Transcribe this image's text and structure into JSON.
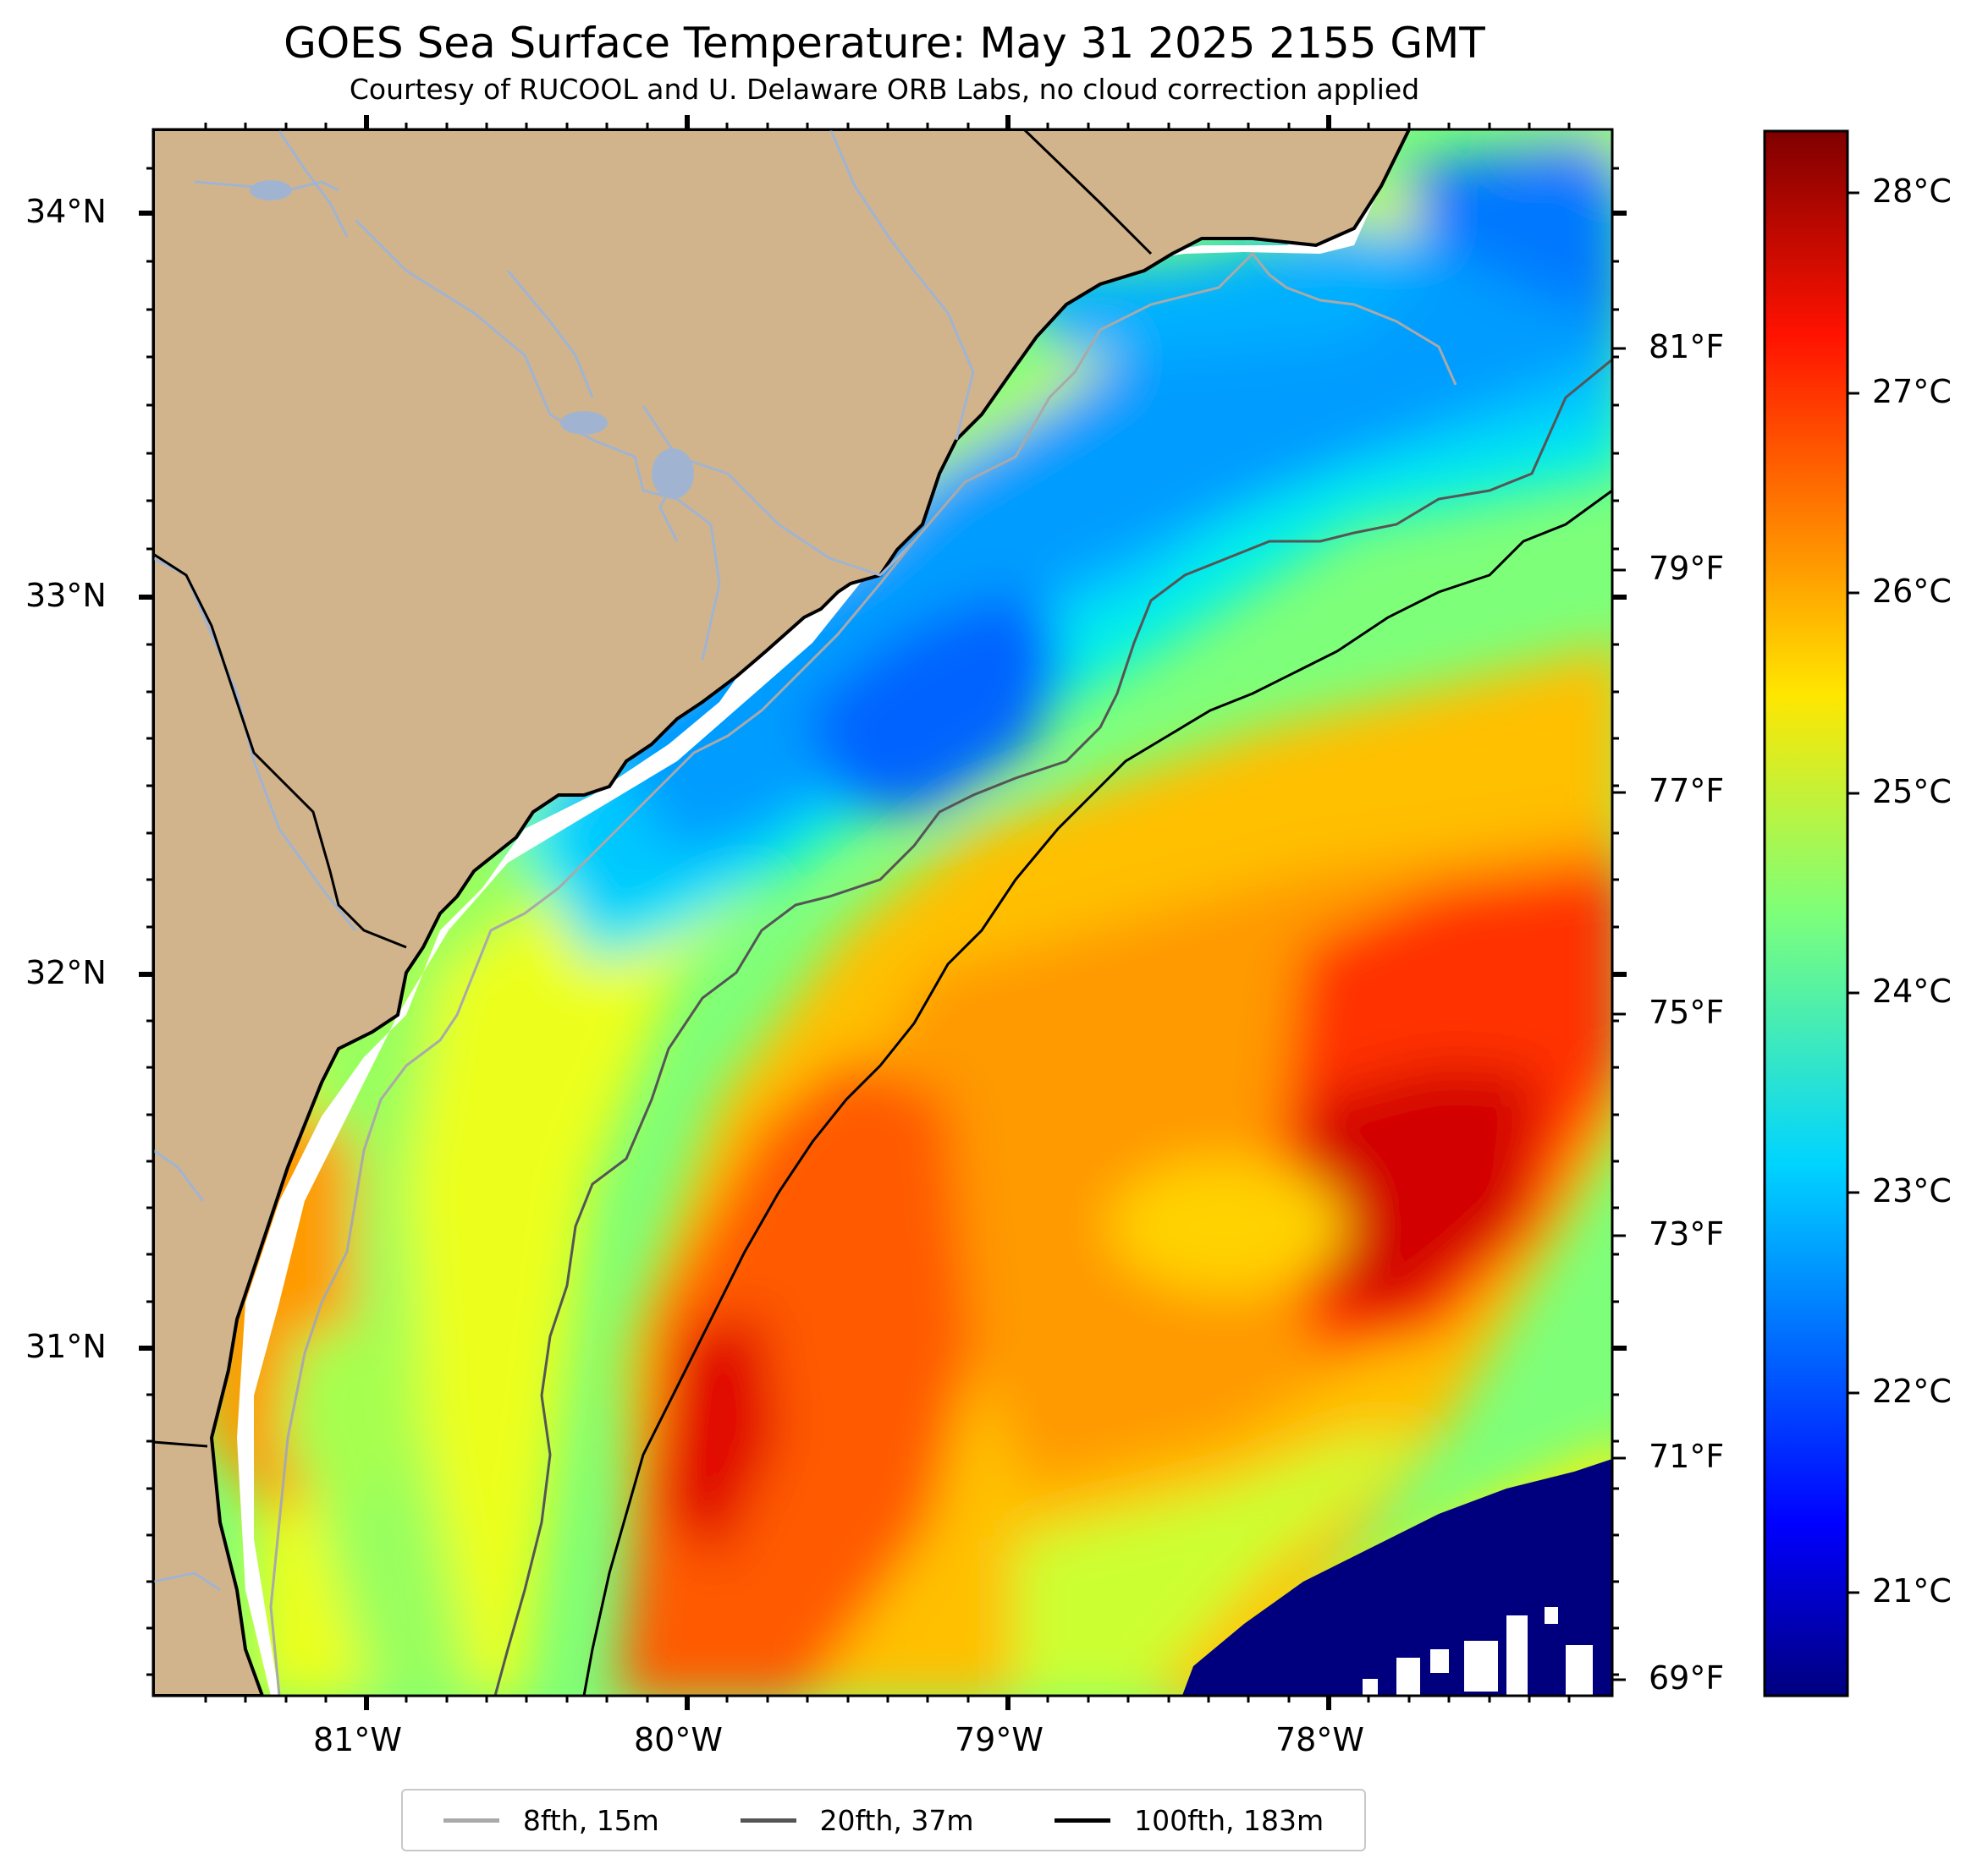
{
  "title": "GOES Sea Surface Temperature: May 31 2025 2155 GMT",
  "subtitle": "Courtesy of RUCOOL and U. Delaware ORB Labs, no cloud correction applied",
  "map": {
    "lat_labels": [
      "34°N",
      "33°N",
      "32°N",
      "31°N"
    ],
    "lon_labels": [
      "81°W",
      "80°W",
      "79°W",
      "78°W"
    ],
    "fahrenheit_labels": [
      "81°F",
      "79°F",
      "77°F",
      "75°F",
      "73°F",
      "71°F",
      "69°F"
    ],
    "land_color": "#d2b48c",
    "river_color": "#a0b4d2",
    "missing_data_color": "#ffffff"
  },
  "colorbar": {
    "colormap": "jet",
    "celsius_labels": [
      "28°C",
      "27°C",
      "26°C",
      "25°C",
      "24°C",
      "23°C",
      "22°C",
      "21°C"
    ]
  },
  "legend": {
    "items": [
      {
        "label": "8fth, 15m",
        "color": "#a9a9a9"
      },
      {
        "label": "20fth, 37m",
        "color": "#555555"
      },
      {
        "label": "100fth, 183m",
        "color": "#000000"
      }
    ]
  }
}
